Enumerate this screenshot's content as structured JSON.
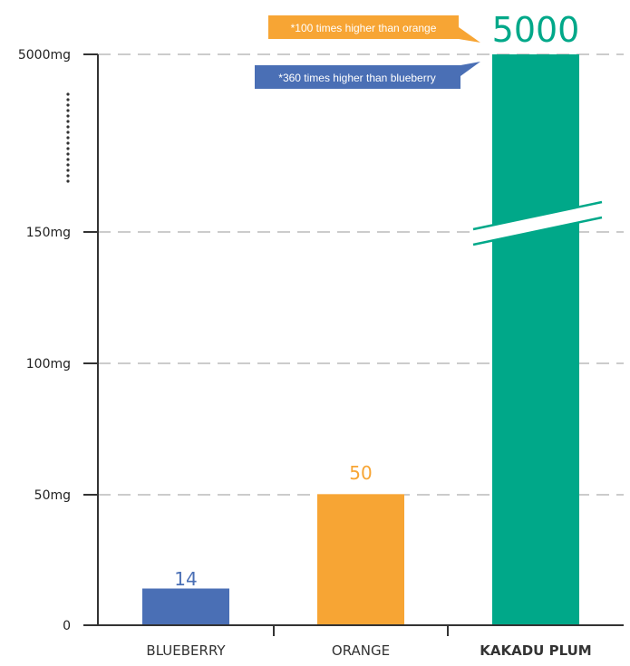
{
  "chart_data": {
    "type": "bar",
    "categories": [
      "BLUEBERRY",
      "ORANGE",
      "KAKADU PLUM"
    ],
    "values": [
      14,
      50,
      5000
    ],
    "value_labels": [
      "14",
      "50",
      "5000"
    ],
    "y_ticks": [
      {
        "value": 0,
        "label": "0"
      },
      {
        "value": 50,
        "label": "50mg"
      },
      {
        "value": 100,
        "label": "100mg"
      },
      {
        "value": 150,
        "label": "150mg"
      },
      {
        "value": 5000,
        "label": "5000mg"
      }
    ],
    "axis_break": true,
    "grid": "dashed",
    "bold_category": "KAKADU PLUM",
    "annotations": [
      "*100 times higher than orange",
      "*360 times higher than blueberry"
    ]
  },
  "colors": {
    "blueberry": "#4a6fb5",
    "orange": "#f7a534",
    "kakadu": "#00a889",
    "axis": "#333333",
    "grid": "#999999"
  }
}
